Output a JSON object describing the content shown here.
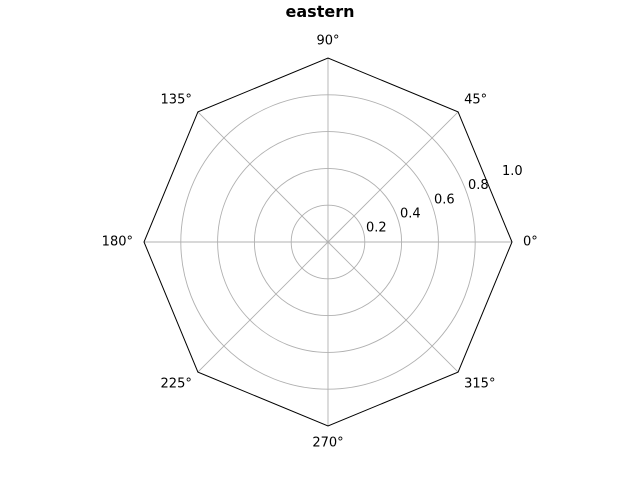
{
  "chart_data": {
    "type": "polar",
    "title": "eastern",
    "frame": "octagon",
    "grid": true,
    "rlim": [
      0,
      1.0
    ],
    "r_ticks": [
      0.2,
      0.4,
      0.6,
      0.8,
      1.0
    ],
    "r_tick_labels": [
      "0.2",
      "0.4",
      "0.6",
      "0.8",
      "1.0"
    ],
    "theta_ticks": [
      0,
      45,
      90,
      135,
      180,
      225,
      270,
      315
    ],
    "theta_tick_labels": [
      "0°",
      "45°",
      "90°",
      "135°",
      "180°",
      "225°",
      "270°",
      "315°"
    ],
    "series": []
  }
}
